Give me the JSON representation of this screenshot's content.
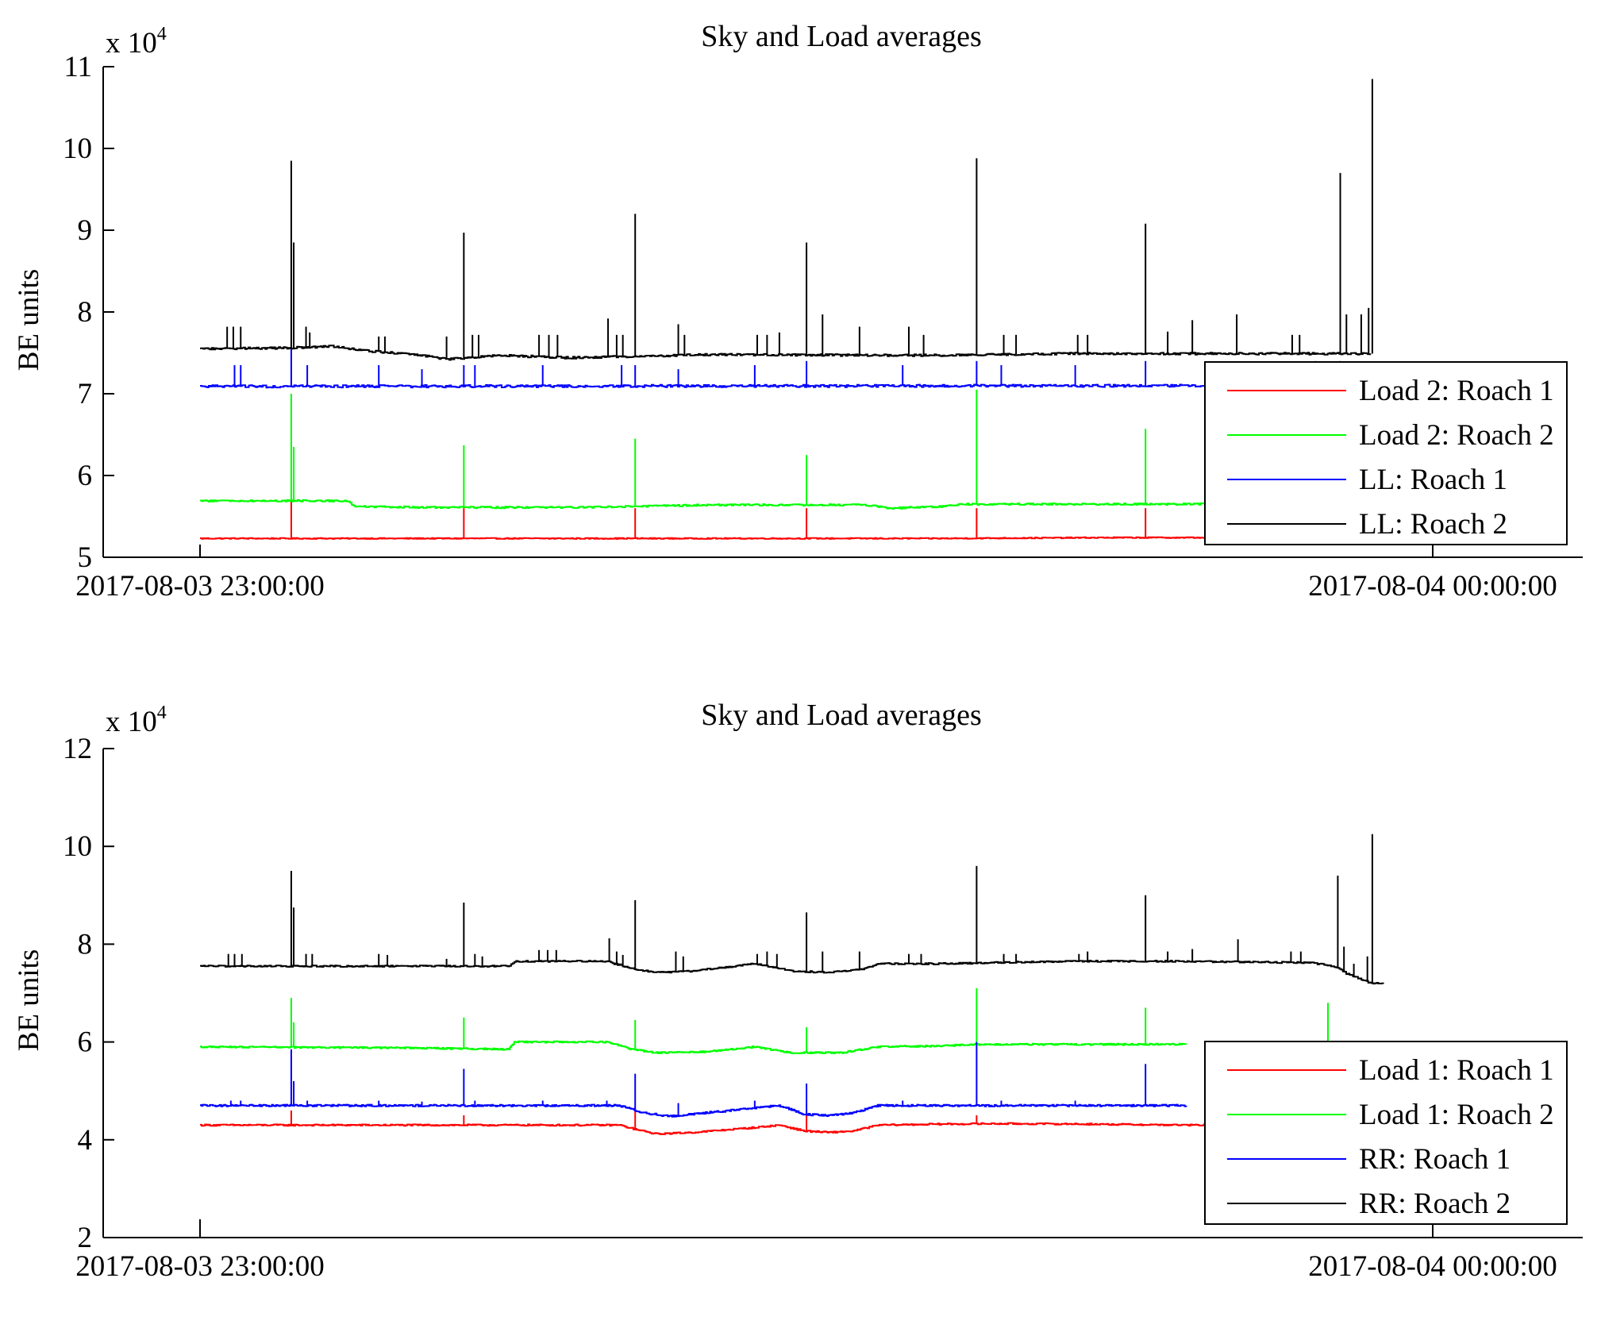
{
  "chart_data": [
    {
      "type": "line",
      "title": "Sky and Load averages",
      "xlabel": "",
      "ylabel": "BE units",
      "y_multiplier": "x 10",
      "y_multiplier_exp": "4",
      "x_range": [
        "2017-08-03 23:00:00",
        "2017-08-04 00:00:00"
      ],
      "xticks": [
        "2017-08-03 23:00:00",
        "2017-08-04 00:00:00"
      ],
      "ylim": [
        5,
        11
      ],
      "yticks": [
        5,
        6,
        7,
        8,
        9,
        10,
        11
      ],
      "legend_position": "lower-right",
      "series": [
        {
          "name": "Load 2: Roach 1",
          "color": "#ff0000",
          "baseline": [
            [
              0,
              5.23
            ],
            [
              60,
              5.23
            ],
            [
              73,
              5.24
            ],
            [
              99,
              5.24
            ]
          ],
          "spikes": [
            [
              7.4,
              5.7
            ],
            [
              21.4,
              5.6
            ],
            [
              35.3,
              5.6
            ],
            [
              49.2,
              5.6
            ],
            [
              63,
              5.6
            ],
            [
              76.7,
              5.6
            ]
          ],
          "noise": 0.006
        },
        {
          "name": "Load 2: Roach 2",
          "color": "#00ff00",
          "baseline": [
            [
              0,
              5.69
            ],
            [
              12,
              5.69
            ],
            [
              12.5,
              5.62
            ],
            [
              18,
              5.61
            ],
            [
              30,
              5.61
            ],
            [
              42,
              5.64
            ],
            [
              54,
              5.64
            ],
            [
              56,
              5.6
            ],
            [
              60,
              5.62
            ],
            [
              62,
              5.65
            ],
            [
              99,
              5.65
            ]
          ],
          "spikes": [
            [
              7.4,
              7.0
            ],
            [
              7.6,
              6.35
            ],
            [
              21.4,
              6.37
            ],
            [
              35.3,
              6.45
            ],
            [
              49.2,
              6.25
            ],
            [
              63,
              7.05
            ],
            [
              76.7,
              6.57
            ]
          ],
          "noise": 0.01
        },
        {
          "name": "LL: Roach 1",
          "color": "#0000ff",
          "baseline": [
            [
              0,
              7.09
            ],
            [
              99,
              7.1
            ]
          ],
          "spikes": [
            [
              2.8,
              7.35
            ],
            [
              3.3,
              7.35
            ],
            [
              7.4,
              7.55
            ],
            [
              8.7,
              7.35
            ],
            [
              14.5,
              7.35
            ],
            [
              18,
              7.3
            ],
            [
              21.4,
              7.35
            ],
            [
              22.3,
              7.35
            ],
            [
              27.8,
              7.35
            ],
            [
              34.2,
              7.35
            ],
            [
              35.3,
              7.35
            ],
            [
              38.8,
              7.3
            ],
            [
              45,
              7.35
            ],
            [
              49.2,
              7.4
            ],
            [
              57,
              7.35
            ],
            [
              63,
              7.4
            ],
            [
              65,
              7.35
            ],
            [
              71,
              7.35
            ],
            [
              76.7,
              7.4
            ],
            [
              83,
              7.35
            ],
            [
              90.5,
              7.4
            ],
            [
              92.5,
              7.4
            ]
          ],
          "noise": 0.015
        },
        {
          "name": "LL: Roach 2",
          "color": "#000000",
          "baseline": [
            [
              0,
              7.55
            ],
            [
              7,
              7.56
            ],
            [
              11,
              7.58
            ],
            [
              13,
              7.53
            ],
            [
              18,
              7.47
            ],
            [
              20,
              7.42
            ],
            [
              24,
              7.47
            ],
            [
              30,
              7.44
            ],
            [
              36,
              7.46
            ],
            [
              42,
              7.48
            ],
            [
              55,
              7.47
            ],
            [
              60,
              7.47
            ],
            [
              70,
              7.49
            ],
            [
              80,
              7.49
            ],
            [
              92,
              7.49
            ],
            [
              95,
              7.49
            ]
          ],
          "spikes": [
            [
              2.2,
              7.82
            ],
            [
              2.7,
              7.82
            ],
            [
              3.3,
              7.82
            ],
            [
              7.4,
              9.85
            ],
            [
              7.6,
              8.85
            ],
            [
              8.6,
              7.82
            ],
            [
              8.9,
              7.75
            ],
            [
              14.5,
              7.7
            ],
            [
              15,
              7.7
            ],
            [
              20,
              7.7
            ],
            [
              21.4,
              8.97
            ],
            [
              22.1,
              7.72
            ],
            [
              22.6,
              7.72
            ],
            [
              27.5,
              7.72
            ],
            [
              28.3,
              7.72
            ],
            [
              29,
              7.72
            ],
            [
              33.1,
              7.92
            ],
            [
              33.8,
              7.72
            ],
            [
              34.3,
              7.72
            ],
            [
              35.3,
              9.2
            ],
            [
              38.8,
              7.85
            ],
            [
              39.3,
              7.72
            ],
            [
              45.2,
              7.72
            ],
            [
              46,
              7.72
            ],
            [
              47,
              7.75
            ],
            [
              49.2,
              8.85
            ],
            [
              50.5,
              7.97
            ],
            [
              53.5,
              7.82
            ],
            [
              57.5,
              7.82
            ],
            [
              58.7,
              7.72
            ],
            [
              63,
              9.88
            ],
            [
              65.2,
              7.72
            ],
            [
              66.2,
              7.72
            ],
            [
              71.2,
              7.72
            ],
            [
              72,
              7.72
            ],
            [
              76.7,
              9.08
            ],
            [
              78.5,
              7.76
            ],
            [
              80.5,
              7.9
            ],
            [
              84.1,
              7.97
            ],
            [
              88.6,
              7.72
            ],
            [
              89.2,
              7.72
            ],
            [
              92.5,
              9.7
            ],
            [
              93,
              7.97
            ],
            [
              94.2,
              7.97
            ],
            [
              94.8,
              8.05
            ],
            [
              95.1,
              10.85
            ]
          ],
          "noise": 0.012
        }
      ]
    },
    {
      "type": "line",
      "title": "Sky and Load averages",
      "xlabel": "",
      "ylabel": "BE units",
      "y_multiplier": "x 10",
      "y_multiplier_exp": "4",
      "x_range": [
        "2017-08-03 23:00:00",
        "2017-08-04 00:00:00"
      ],
      "xticks": [
        "2017-08-03 23:00:00",
        "2017-08-04 00:00:00"
      ],
      "ylim": [
        2,
        12
      ],
      "yticks": [
        2,
        4,
        6,
        8,
        10,
        12
      ],
      "legend_position": "lower-right",
      "series": [
        {
          "name": "Load 1: Roach 1",
          "color": "#ff0000",
          "baseline": [
            [
              0,
              4.3
            ],
            [
              34,
              4.3
            ],
            [
              35.5,
              4.2
            ],
            [
              37,
              4.12
            ],
            [
              40,
              4.15
            ],
            [
              45,
              4.25
            ],
            [
              47,
              4.3
            ],
            [
              49,
              4.18
            ],
            [
              51,
              4.15
            ],
            [
              53,
              4.18
            ],
            [
              55,
              4.3
            ],
            [
              60,
              4.32
            ],
            [
              65,
              4.33
            ],
            [
              72,
              4.32
            ],
            [
              80,
              4.3
            ],
            [
              95,
              4.3
            ]
          ],
          "spikes": [
            [
              7.4,
              4.6
            ],
            [
              21.4,
              4.5
            ],
            [
              35.3,
              4.6
            ],
            [
              49.2,
              4.6
            ],
            [
              63,
              4.5
            ]
          ],
          "noise": 0.015
        },
        {
          "name": "Load 1: Roach 2",
          "color": "#00ff00",
          "baseline": [
            [
              0,
              5.9
            ],
            [
              16,
              5.88
            ],
            [
              25,
              5.85
            ],
            [
              25.5,
              6.0
            ],
            [
              33,
              6.0
            ],
            [
              35,
              5.85
            ],
            [
              37,
              5.78
            ],
            [
              41,
              5.8
            ],
            [
              45,
              5.9
            ],
            [
              48,
              5.78
            ],
            [
              52,
              5.78
            ],
            [
              55,
              5.9
            ],
            [
              60,
              5.92
            ],
            [
              63,
              5.95
            ],
            [
              80,
              5.95
            ]
          ],
          "spikes": [
            [
              7.4,
              6.9
            ],
            [
              7.6,
              6.4
            ],
            [
              21.4,
              6.5
            ],
            [
              35.3,
              6.45
            ],
            [
              49.2,
              6.3
            ],
            [
              63,
              7.1
            ],
            [
              76.7,
              6.7
            ],
            [
              91.5,
              6.8
            ]
          ],
          "noise": 0.015
        },
        {
          "name": "RR: Roach 1",
          "color": "#0000ff",
          "baseline": [
            [
              0,
              4.7
            ],
            [
              34,
              4.7
            ],
            [
              36,
              4.55
            ],
            [
              38,
              4.48
            ],
            [
              41,
              4.55
            ],
            [
              45,
              4.65
            ],
            [
              47,
              4.7
            ],
            [
              49,
              4.52
            ],
            [
              51,
              4.5
            ],
            [
              53,
              4.55
            ],
            [
              55,
              4.7
            ],
            [
              80,
              4.7
            ]
          ],
          "spikes": [
            [
              2.5,
              4.8
            ],
            [
              3.3,
              4.8
            ],
            [
              7.4,
              5.85
            ],
            [
              7.6,
              5.2
            ],
            [
              8.7,
              4.8
            ],
            [
              14.5,
              4.8
            ],
            [
              18,
              4.78
            ],
            [
              21.4,
              5.45
            ],
            [
              22.3,
              4.8
            ],
            [
              27.8,
              4.8
            ],
            [
              33,
              4.8
            ],
            [
              35.3,
              5.35
            ],
            [
              38.8,
              4.75
            ],
            [
              45,
              4.8
            ],
            [
              49.2,
              5.15
            ],
            [
              57,
              4.8
            ],
            [
              63,
              6.0
            ],
            [
              65,
              4.8
            ],
            [
              71,
              4.8
            ],
            [
              76.7,
              5.55
            ]
          ],
          "noise": 0.018
        },
        {
          "name": "RR: Roach 2",
          "color": "#000000",
          "baseline": [
            [
              0,
              7.55
            ],
            [
              25,
              7.55
            ],
            [
              25.5,
              7.65
            ],
            [
              33,
              7.65
            ],
            [
              35,
              7.5
            ],
            [
              37,
              7.42
            ],
            [
              40,
              7.45
            ],
            [
              45,
              7.6
            ],
            [
              48,
              7.45
            ],
            [
              51,
              7.42
            ],
            [
              54,
              7.5
            ],
            [
              55,
              7.6
            ],
            [
              60,
              7.6
            ],
            [
              64,
              7.62
            ],
            [
              70,
              7.65
            ],
            [
              80,
              7.65
            ],
            [
              90,
              7.62
            ],
            [
              92,
              7.55
            ],
            [
              93,
              7.4
            ],
            [
              95,
              7.2
            ],
            [
              96,
              7.2
            ]
          ],
          "spikes": [
            [
              2.3,
              7.8
            ],
            [
              2.8,
              7.8
            ],
            [
              3.4,
              7.8
            ],
            [
              7.4,
              9.5
            ],
            [
              7.6,
              8.75
            ],
            [
              8.6,
              7.8
            ],
            [
              9.1,
              7.8
            ],
            [
              14.5,
              7.8
            ],
            [
              15.2,
              7.78
            ],
            [
              20,
              7.7
            ],
            [
              21.4,
              8.85
            ],
            [
              22.3,
              7.8
            ],
            [
              22.9,
              7.75
            ],
            [
              27.5,
              7.88
            ],
            [
              28.2,
              7.88
            ],
            [
              28.9,
              7.88
            ],
            [
              33.2,
              8.12
            ],
            [
              33.8,
              7.85
            ],
            [
              34.3,
              7.78
            ],
            [
              35.3,
              8.9
            ],
            [
              38.6,
              7.85
            ],
            [
              39.2,
              7.75
            ],
            [
              45.2,
              7.8
            ],
            [
              46,
              7.85
            ],
            [
              46.8,
              7.8
            ],
            [
              49.2,
              8.65
            ],
            [
              50.5,
              7.85
            ],
            [
              53.5,
              7.85
            ],
            [
              57.5,
              7.8
            ],
            [
              58.5,
              7.8
            ],
            [
              63,
              9.6
            ],
            [
              65.2,
              7.8
            ],
            [
              66.2,
              7.8
            ],
            [
              71.3,
              7.8
            ],
            [
              72,
              7.85
            ],
            [
              76.7,
              9.0
            ],
            [
              78.5,
              7.85
            ],
            [
              80.5,
              7.9
            ],
            [
              84.2,
              8.1
            ],
            [
              88.5,
              7.85
            ],
            [
              89.3,
              7.85
            ],
            [
              92.3,
              9.4
            ],
            [
              92.8,
              7.95
            ],
            [
              93.6,
              7.6
            ],
            [
              94.7,
              7.75
            ],
            [
              95.1,
              10.25
            ]
          ],
          "noise": 0.015
        }
      ]
    }
  ]
}
